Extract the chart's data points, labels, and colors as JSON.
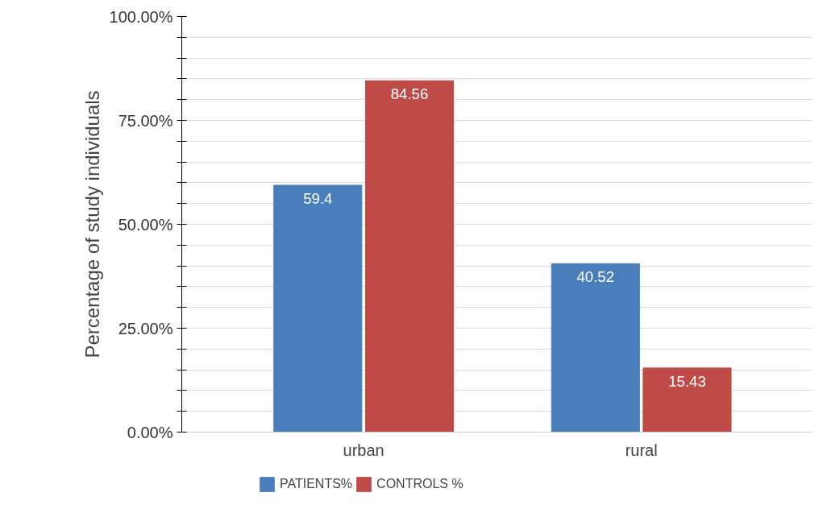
{
  "chart_data": {
    "type": "bar",
    "ylabel": "Percentage of study individuals",
    "categories": [
      "urban",
      "rural"
    ],
    "series": [
      {
        "name": "PATIENTS%",
        "color": "#4a7ebb",
        "values": [
          59.4,
          40.52
        ]
      },
      {
        "name": "CONTROLS %",
        "color": "#be4b48",
        "values": [
          84.56,
          15.43
        ]
      }
    ],
    "ylim": [
      0,
      100
    ],
    "yticks": [
      {
        "value": 0,
        "label": "0.00%"
      },
      {
        "value": 5,
        "label": null
      },
      {
        "value": 10,
        "label": null
      },
      {
        "value": 15,
        "label": null
      },
      {
        "value": 20,
        "label": null
      },
      {
        "value": 25,
        "label": "25.00%"
      },
      {
        "value": 30,
        "label": null
      },
      {
        "value": 35,
        "label": null
      },
      {
        "value": 40,
        "label": null
      },
      {
        "value": 45,
        "label": null
      },
      {
        "value": 50,
        "label": "50.00%"
      },
      {
        "value": 55,
        "label": null
      },
      {
        "value": 60,
        "label": null
      },
      {
        "value": 65,
        "label": null
      },
      {
        "value": 70,
        "label": null
      },
      {
        "value": 75,
        "label": "75.00%"
      },
      {
        "value": 80,
        "label": null
      },
      {
        "value": 85,
        "label": null
      },
      {
        "value": 90,
        "label": null
      },
      {
        "value": 95,
        "label": null
      },
      {
        "value": 100,
        "label": "100.00%"
      }
    ],
    "grid": "y",
    "legend": "bottom",
    "data_labels": true
  }
}
